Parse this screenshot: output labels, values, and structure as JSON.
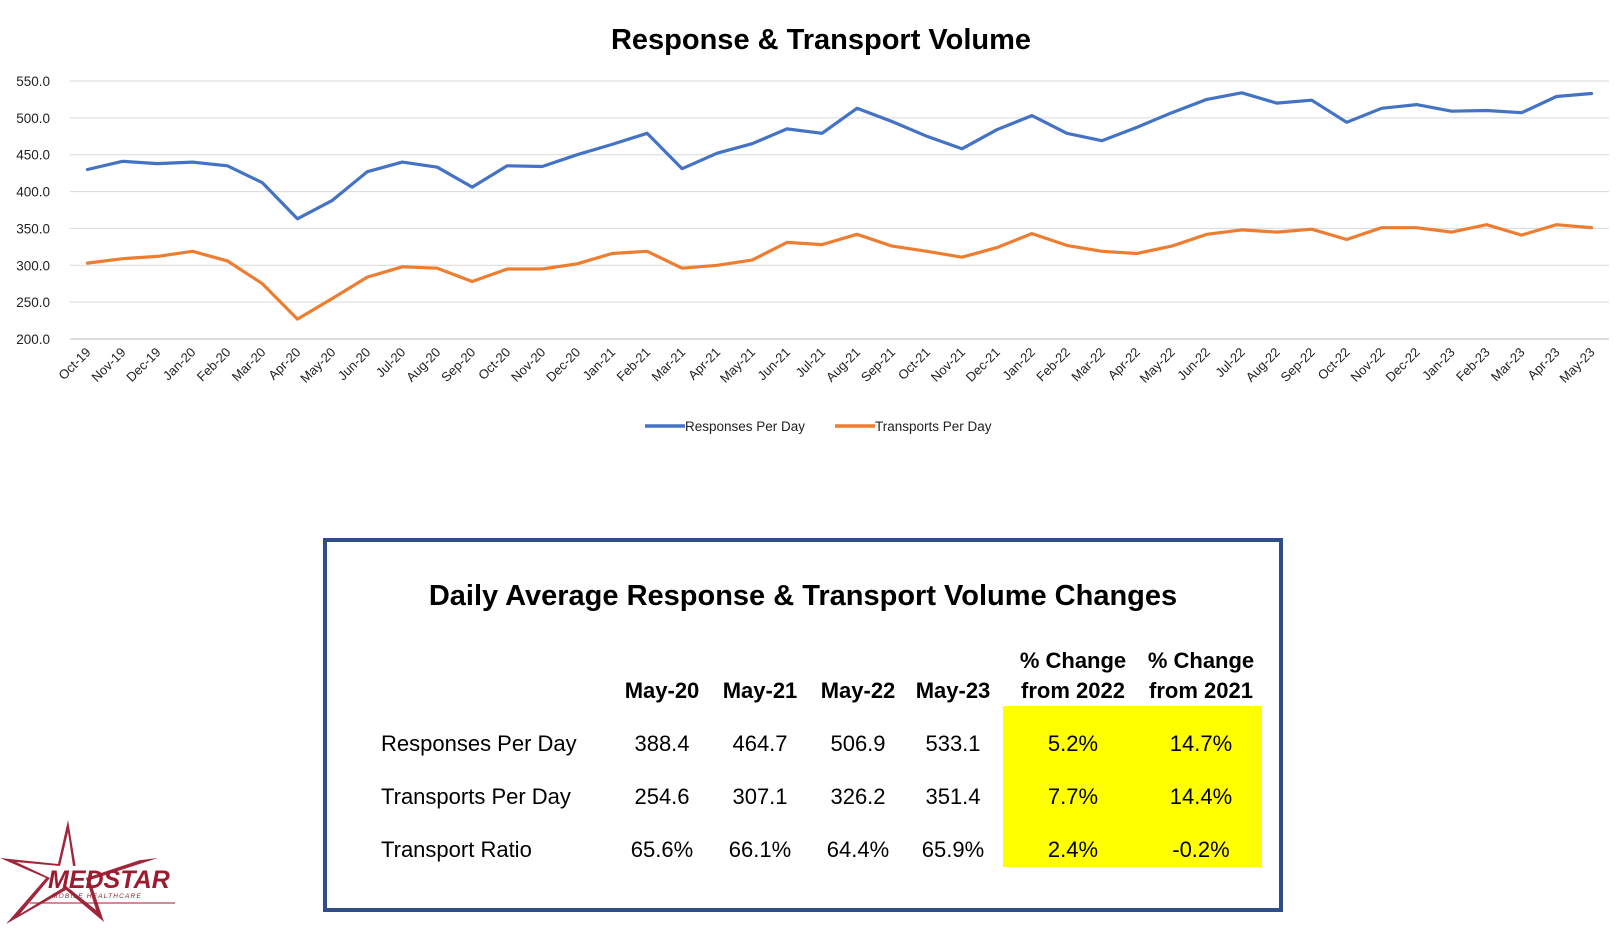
{
  "chart_data": {
    "type": "line",
    "title": "Response & Transport Volume",
    "categories": [
      "Oct-19",
      "Nov-19",
      "Dec-19",
      "Jan-20",
      "Feb-20",
      "Mar-20",
      "Apr-20",
      "May-20",
      "Jun-20",
      "Jul-20",
      "Aug-20",
      "Sep-20",
      "Oct-20",
      "Nov-20",
      "Dec-20",
      "Jan-21",
      "Feb-21",
      "Mar-21",
      "Apr-21",
      "May-21",
      "Jun-21",
      "Jul-21",
      "Aug-21",
      "Sep-21",
      "Oct-21",
      "Nov-21",
      "Dec-21",
      "Jan-22",
      "Feb-22",
      "Mar-22",
      "Apr-22",
      "May-22",
      "Jun-22",
      "Jul-22",
      "Aug-22",
      "Sep-22",
      "Oct-22",
      "Nov-22",
      "Dec-22",
      "Jan-23",
      "Feb-23",
      "Mar-23",
      "Apr-23",
      "May-23"
    ],
    "series": [
      {
        "name": "Responses Per Day",
        "color": "#4472c4",
        "values": [
          430,
          441,
          438,
          440,
          435,
          412,
          363,
          388,
          427,
          440,
          433,
          406,
          435,
          434,
          450,
          464,
          479,
          431,
          452,
          465,
          485,
          479,
          513,
          495,
          475,
          458,
          484,
          503,
          479,
          469,
          487,
          507,
          525,
          534,
          520,
          524,
          494,
          513,
          518,
          509,
          510,
          507,
          529,
          533
        ]
      },
      {
        "name": "Transports Per Day",
        "color": "#ed7d31",
        "values": [
          303,
          309,
          312,
          319,
          306,
          275,
          227,
          255,
          284,
          298,
          296,
          278,
          295,
          295,
          302,
          316,
          319,
          296,
          300,
          307,
          331,
          328,
          342,
          326,
          319,
          311,
          324,
          343,
          327,
          319,
          316,
          326,
          342,
          348,
          345,
          349,
          335,
          351,
          351,
          345,
          355,
          341,
          355,
          351
        ]
      }
    ],
    "ylim": [
      200,
      550
    ],
    "yticks": [
      "200.0",
      "250.0",
      "300.0",
      "350.0",
      "400.0",
      "450.0",
      "500.0",
      "550.0"
    ],
    "grid": true,
    "legend": "bottom"
  },
  "table": {
    "title": "Daily Average Response & Transport Volume Changes",
    "col_headers": [
      "May-20",
      "May-21",
      "May-22",
      "May-23"
    ],
    "pct_headers": [
      {
        "line1": "% Change",
        "line2": "from 2022"
      },
      {
        "line1": "% Change",
        "line2": "from 2021"
      }
    ],
    "rows": [
      {
        "label": "Responses Per Day",
        "values": [
          "388.4",
          "464.7",
          "506.9",
          "533.1"
        ],
        "pct": [
          "5.2%",
          "14.7%"
        ]
      },
      {
        "label": "Transports Per Day",
        "values": [
          "254.6",
          "307.1",
          "326.2",
          "351.4"
        ],
        "pct": [
          "7.7%",
          "14.4%"
        ]
      },
      {
        "label": "Transport Ratio",
        "values": [
          "65.6%",
          "66.1%",
          "64.4%",
          "65.9%"
        ],
        "pct": [
          "2.4%",
          "-0.2%"
        ]
      }
    ],
    "highlight_color": "#ffff00",
    "border_color": "#2f4d8a"
  },
  "logo": {
    "name": "MEDSTAR",
    "tagline": "MOBILE HEALTHCARE",
    "color": "#9b1b30"
  }
}
